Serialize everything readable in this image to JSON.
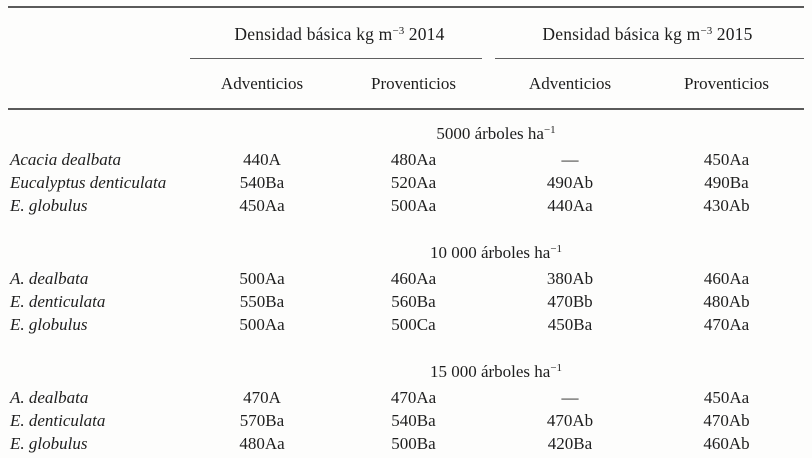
{
  "table": {
    "col_groups": [
      {
        "title_prefix": "Densidad básica kg m",
        "title_sup": "−3",
        "title_suffix": " 2014",
        "subcols": [
          "Adventicios",
          "Proventicios"
        ]
      },
      {
        "title_prefix": "Densidad básica kg m",
        "title_sup": "−3",
        "title_suffix": " 2015",
        "subcols": [
          "Adventicios",
          "Proventicios"
        ]
      }
    ],
    "groups": [
      {
        "header_prefix": "5000 árboles ha",
        "header_sup": "−1",
        "rows": [
          {
            "species": "Acacia dealbata",
            "values": [
              "440A",
              "480Aa",
              "—",
              "450Aa"
            ]
          },
          {
            "species": "Eucalyptus denticulata",
            "values": [
              "540Ba",
              "520Aa",
              "490Ab",
              "490Ba"
            ]
          },
          {
            "species": "E. globulus",
            "values": [
              "450Aa",
              "500Aa",
              "440Aa",
              "430Ab"
            ]
          }
        ]
      },
      {
        "header_prefix": "10 000 árboles ha",
        "header_sup": "−1",
        "rows": [
          {
            "species": "A. dealbata",
            "values": [
              "500Aa",
              "460Aa",
              "380Ab",
              "460Aa"
            ]
          },
          {
            "species": "E. denticulata",
            "values": [
              "550Ba",
              "560Ba",
              "470Bb",
              "480Ab"
            ]
          },
          {
            "species": "E. globulus",
            "values": [
              "500Aa",
              "500Ca",
              "450Ba",
              "470Aa"
            ]
          }
        ]
      },
      {
        "header_prefix": "15 000 árboles ha",
        "header_sup": "−1",
        "rows": [
          {
            "species": "A. dealbata",
            "values": [
              "470A",
              "470Aa",
              "—",
              "450Aa"
            ]
          },
          {
            "species": "E. denticulata",
            "values": [
              "570Ba",
              "540Ba",
              "470Ab",
              "470Ab"
            ]
          },
          {
            "species": "E. globulus",
            "values": [
              "480Aa",
              "500Ba",
              "420Ba",
              "460Ab"
            ]
          }
        ]
      }
    ],
    "rule_color": "#5a5a5a"
  }
}
